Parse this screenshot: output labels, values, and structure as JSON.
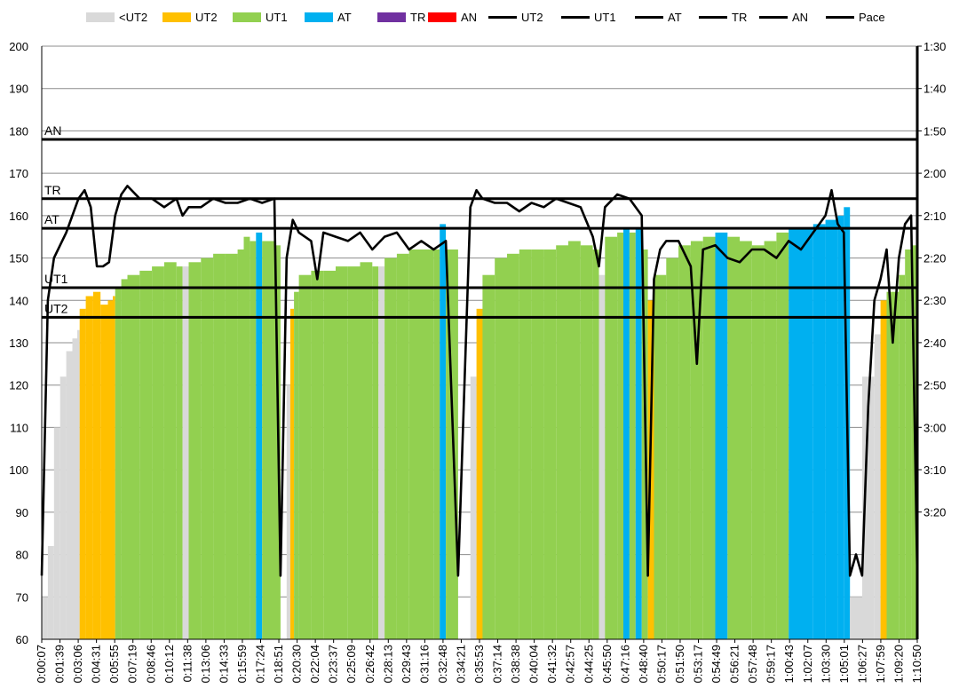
{
  "chart_data": {
    "type": "bar",
    "legend_position": "top",
    "grid": "horizontal",
    "legend": [
      {
        "label": "<UT2",
        "kind": "bar",
        "color": "#d9d9d9"
      },
      {
        "label": "UT2",
        "kind": "bar",
        "color": "#ffc000"
      },
      {
        "label": "UT1",
        "kind": "bar",
        "color": "#92d050"
      },
      {
        "label": "AT",
        "kind": "bar",
        "color": "#00b0f0"
      },
      {
        "label": "TR",
        "kind": "bar",
        "color": "#7030a0"
      },
      {
        "label": "AN",
        "kind": "bar",
        "color": "#ff0000"
      },
      {
        "label": "UT2",
        "kind": "line",
        "color": "#000000"
      },
      {
        "label": "UT1",
        "kind": "line",
        "color": "#000000"
      },
      {
        "label": "AT",
        "kind": "line",
        "color": "#000000"
      },
      {
        "label": "TR",
        "kind": "line",
        "color": "#000000"
      },
      {
        "label": "AN",
        "kind": "line",
        "color": "#000000"
      },
      {
        "label": "Pace",
        "kind": "line",
        "color": "#000000"
      }
    ],
    "y_left": {
      "min": 60,
      "max": 200,
      "ticks": [
        60,
        70,
        80,
        90,
        100,
        110,
        120,
        130,
        140,
        150,
        160,
        170,
        180,
        190,
        200
      ]
    },
    "y_right": {
      "tick_labels": [
        "1:30",
        "1:40",
        "1:50",
        "2:00",
        "2:10",
        "2:20",
        "2:30",
        "2:40",
        "2:50",
        "3:00",
        "3:10",
        "3:20"
      ],
      "top_value_s": 90,
      "seconds_per_tick": 10
    },
    "x_tick_labels": [
      "0:00:07",
      "0:01:39",
      "0:03:06",
      "0:04:31",
      "0:05:55",
      "0:07:19",
      "0:08:46",
      "0:10:12",
      "0:11:38",
      "0:13:06",
      "0:14:33",
      "0:15:59",
      "0:17:24",
      "0:18:51",
      "0:20:30",
      "0:22:04",
      "0:23:37",
      "0:25:09",
      "0:26:42",
      "0:28:13",
      "0:29:43",
      "0:31:16",
      "0:32:48",
      "0:34:21",
      "0:35:53",
      "0:37:14",
      "0:38:38",
      "0:40:04",
      "0:41:32",
      "0:42:57",
      "0:44:25",
      "0:45:50",
      "0:47:16",
      "0:48:40",
      "0:50:17",
      "0:51:50",
      "0:53:17",
      "0:54:49",
      "0:56:21",
      "0:57:48",
      "0:59:17",
      "1:00:43",
      "1:02:07",
      "1:03:30",
      "1:05:01",
      "1:06:27",
      "1:07:59",
      "1:09:20",
      "1:10:50"
    ],
    "zone_lines": [
      {
        "label": "AN",
        "value": 178
      },
      {
        "label": "TR",
        "value": 164
      },
      {
        "label": "AT",
        "value": 157
      },
      {
        "label": "UT1",
        "value": 143
      },
      {
        "label": "UT2",
        "value": 136
      }
    ],
    "hr_samples": [
      {
        "t": 0,
        "hr": 70,
        "zone": "<UT2"
      },
      {
        "t": 0.5,
        "hr": 82,
        "zone": "<UT2"
      },
      {
        "t": 1,
        "hr": 110,
        "zone": "<UT2"
      },
      {
        "t": 1.5,
        "hr": 122,
        "zone": "<UT2"
      },
      {
        "t": 2,
        "hr": 128,
        "zone": "<UT2"
      },
      {
        "t": 2.5,
        "hr": 131,
        "zone": "<UT2"
      },
      {
        "t": 2.9,
        "hr": 133,
        "zone": "<UT2"
      },
      {
        "t": 3.1,
        "hr": 138,
        "zone": "UT2"
      },
      {
        "t": 3.6,
        "hr": 141,
        "zone": "UT2"
      },
      {
        "t": 4.2,
        "hr": 142,
        "zone": "UT2"
      },
      {
        "t": 4.8,
        "hr": 139,
        "zone": "UT2"
      },
      {
        "t": 5.4,
        "hr": 140,
        "zone": "UT2"
      },
      {
        "t": 5.8,
        "hr": 141,
        "zone": "UT2"
      },
      {
        "t": 6.0,
        "hr": 143,
        "zone": "UT1"
      },
      {
        "t": 6.5,
        "hr": 145,
        "zone": "UT1"
      },
      {
        "t": 7,
        "hr": 146,
        "zone": "UT1"
      },
      {
        "t": 8,
        "hr": 147,
        "zone": "UT1"
      },
      {
        "t": 9,
        "hr": 148,
        "zone": "UT1"
      },
      {
        "t": 10,
        "hr": 149,
        "zone": "UT1"
      },
      {
        "t": 11,
        "hr": 148,
        "zone": "UT1"
      },
      {
        "t": 11.5,
        "hr": 148,
        "zone": "<UT2"
      },
      {
        "t": 12,
        "hr": 149,
        "zone": "UT1"
      },
      {
        "t": 13,
        "hr": 150,
        "zone": "UT1"
      },
      {
        "t": 14,
        "hr": 151,
        "zone": "UT1"
      },
      {
        "t": 15,
        "hr": 151,
        "zone": "UT1"
      },
      {
        "t": 16,
        "hr": 152,
        "zone": "UT1"
      },
      {
        "t": 16.5,
        "hr": 155,
        "zone": "UT1"
      },
      {
        "t": 17,
        "hr": 154,
        "zone": "UT1"
      },
      {
        "t": 17.5,
        "hr": 156,
        "zone": "AT"
      },
      {
        "t": 18,
        "hr": 154,
        "zone": "UT1"
      },
      {
        "t": 19,
        "hr": 153,
        "zone": "UT1"
      },
      {
        "t": 19.5,
        "hr": 60,
        "zone": "<UT2"
      },
      {
        "t": 20,
        "hr": 120,
        "zone": "<UT2"
      },
      {
        "t": 20.3,
        "hr": 138,
        "zone": "UT2"
      },
      {
        "t": 20.6,
        "hr": 142,
        "zone": "UT1"
      },
      {
        "t": 21,
        "hr": 146,
        "zone": "UT1"
      },
      {
        "t": 22,
        "hr": 147,
        "zone": "UT1"
      },
      {
        "t": 23,
        "hr": 147,
        "zone": "UT1"
      },
      {
        "t": 24,
        "hr": 148,
        "zone": "UT1"
      },
      {
        "t": 25,
        "hr": 148,
        "zone": "UT1"
      },
      {
        "t": 26,
        "hr": 149,
        "zone": "UT1"
      },
      {
        "t": 27,
        "hr": 148,
        "zone": "UT1"
      },
      {
        "t": 27.5,
        "hr": 148,
        "zone": "<UT2"
      },
      {
        "t": 28,
        "hr": 150,
        "zone": "UT1"
      },
      {
        "t": 29,
        "hr": 151,
        "zone": "UT1"
      },
      {
        "t": 30,
        "hr": 152,
        "zone": "UT1"
      },
      {
        "t": 31,
        "hr": 152,
        "zone": "UT1"
      },
      {
        "t": 32,
        "hr": 152,
        "zone": "UT1"
      },
      {
        "t": 32.5,
        "hr": 158,
        "zone": "AT"
      },
      {
        "t": 33,
        "hr": 152,
        "zone": "UT1"
      },
      {
        "t": 34,
        "hr": 60,
        "zone": "<UT2"
      },
      {
        "t": 35,
        "hr": 122,
        "zone": "<UT2"
      },
      {
        "t": 35.5,
        "hr": 138,
        "zone": "UT2"
      },
      {
        "t": 36,
        "hr": 146,
        "zone": "UT1"
      },
      {
        "t": 37,
        "hr": 150,
        "zone": "UT1"
      },
      {
        "t": 38,
        "hr": 151,
        "zone": "UT1"
      },
      {
        "t": 39,
        "hr": 152,
        "zone": "UT1"
      },
      {
        "t": 40,
        "hr": 152,
        "zone": "UT1"
      },
      {
        "t": 41,
        "hr": 152,
        "zone": "UT1"
      },
      {
        "t": 42,
        "hr": 153,
        "zone": "UT1"
      },
      {
        "t": 43,
        "hr": 154,
        "zone": "UT1"
      },
      {
        "t": 44,
        "hr": 153,
        "zone": "UT1"
      },
      {
        "t": 45,
        "hr": 152,
        "zone": "UT1"
      },
      {
        "t": 45.5,
        "hr": 146,
        "zone": "<UT2"
      },
      {
        "t": 46,
        "hr": 155,
        "zone": "UT1"
      },
      {
        "t": 47,
        "hr": 156,
        "zone": "UT1"
      },
      {
        "t": 47.5,
        "hr": 157,
        "zone": "AT"
      },
      {
        "t": 48,
        "hr": 156,
        "zone": "UT1"
      },
      {
        "t": 48.5,
        "hr": 157,
        "zone": "AT"
      },
      {
        "t": 49,
        "hr": 152,
        "zone": "UT1"
      },
      {
        "t": 49.5,
        "hr": 140,
        "zone": "UT2"
      },
      {
        "t": 50,
        "hr": 146,
        "zone": "UT1"
      },
      {
        "t": 51,
        "hr": 150,
        "zone": "UT1"
      },
      {
        "t": 52,
        "hr": 153,
        "zone": "UT1"
      },
      {
        "t": 53,
        "hr": 154,
        "zone": "UT1"
      },
      {
        "t": 54,
        "hr": 155,
        "zone": "UT1"
      },
      {
        "t": 55,
        "hr": 156,
        "zone": "AT"
      },
      {
        "t": 56,
        "hr": 155,
        "zone": "UT1"
      },
      {
        "t": 57,
        "hr": 154,
        "zone": "UT1"
      },
      {
        "t": 58,
        "hr": 153,
        "zone": "UT1"
      },
      {
        "t": 59,
        "hr": 154,
        "zone": "UT1"
      },
      {
        "t": 60,
        "hr": 156,
        "zone": "UT1"
      },
      {
        "t": 61,
        "hr": 157,
        "zone": "AT"
      },
      {
        "t": 62,
        "hr": 157,
        "zone": "AT"
      },
      {
        "t": 63,
        "hr": 158,
        "zone": "AT"
      },
      {
        "t": 64,
        "hr": 159,
        "zone": "AT"
      },
      {
        "t": 65,
        "hr": 160,
        "zone": "AT"
      },
      {
        "t": 65.5,
        "hr": 162,
        "zone": "AT"
      },
      {
        "t": 66,
        "hr": 70,
        "zone": "<UT2"
      },
      {
        "t": 67,
        "hr": 122,
        "zone": "<UT2"
      },
      {
        "t": 68,
        "hr": 132,
        "zone": "<UT2"
      },
      {
        "t": 68.5,
        "hr": 140,
        "zone": "UT2"
      },
      {
        "t": 69,
        "hr": 142,
        "zone": "UT1"
      },
      {
        "t": 70,
        "hr": 146,
        "zone": "UT1"
      },
      {
        "t": 70.5,
        "hr": 152,
        "zone": "UT1"
      },
      {
        "t": 71,
        "hr": 153,
        "zone": "UT1"
      }
    ],
    "pace_samples": [
      {
        "t": 0,
        "pace_s": 215
      },
      {
        "t": 0.5,
        "pace_s": 150
      },
      {
        "t": 1,
        "pace_s": 140
      },
      {
        "t": 1.5,
        "pace_s": 137
      },
      {
        "t": 2,
        "pace_s": 134
      },
      {
        "t": 2.5,
        "pace_s": 130
      },
      {
        "t": 3,
        "pace_s": 126
      },
      {
        "t": 3.5,
        "pace_s": 124
      },
      {
        "t": 4,
        "pace_s": 128
      },
      {
        "t": 4.5,
        "pace_s": 142
      },
      {
        "t": 5,
        "pace_s": 142
      },
      {
        "t": 5.5,
        "pace_s": 141
      },
      {
        "t": 6,
        "pace_s": 130
      },
      {
        "t": 6.5,
        "pace_s": 125
      },
      {
        "t": 7,
        "pace_s": 123
      },
      {
        "t": 8,
        "pace_s": 126
      },
      {
        "t": 9,
        "pace_s": 126
      },
      {
        "t": 10,
        "pace_s": 128
      },
      {
        "t": 11,
        "pace_s": 126
      },
      {
        "t": 11.5,
        "pace_s": 130
      },
      {
        "t": 12,
        "pace_s": 128
      },
      {
        "t": 13,
        "pace_s": 128
      },
      {
        "t": 14,
        "pace_s": 126
      },
      {
        "t": 15,
        "pace_s": 127
      },
      {
        "t": 16,
        "pace_s": 127
      },
      {
        "t": 17,
        "pace_s": 126
      },
      {
        "t": 18,
        "pace_s": 127
      },
      {
        "t": 19,
        "pace_s": 126
      },
      {
        "t": 19.5,
        "pace_s": 215
      },
      {
        "t": 20,
        "pace_s": 140
      },
      {
        "t": 20.5,
        "pace_s": 131
      },
      {
        "t": 21,
        "pace_s": 134
      },
      {
        "t": 22,
        "pace_s": 136
      },
      {
        "t": 22.5,
        "pace_s": 145
      },
      {
        "t": 23,
        "pace_s": 134
      },
      {
        "t": 24,
        "pace_s": 135
      },
      {
        "t": 25,
        "pace_s": 136
      },
      {
        "t": 26,
        "pace_s": 134
      },
      {
        "t": 27,
        "pace_s": 138
      },
      {
        "t": 28,
        "pace_s": 135
      },
      {
        "t": 29,
        "pace_s": 134
      },
      {
        "t": 30,
        "pace_s": 138
      },
      {
        "t": 31,
        "pace_s": 136
      },
      {
        "t": 32,
        "pace_s": 138
      },
      {
        "t": 33,
        "pace_s": 136
      },
      {
        "t": 34,
        "pace_s": 215
      },
      {
        "t": 35,
        "pace_s": 128
      },
      {
        "t": 35.5,
        "pace_s": 124
      },
      {
        "t": 36,
        "pace_s": 126
      },
      {
        "t": 37,
        "pace_s": 127
      },
      {
        "t": 38,
        "pace_s": 127
      },
      {
        "t": 39,
        "pace_s": 129
      },
      {
        "t": 40,
        "pace_s": 127
      },
      {
        "t": 41,
        "pace_s": 128
      },
      {
        "t": 42,
        "pace_s": 126
      },
      {
        "t": 43,
        "pace_s": 127
      },
      {
        "t": 44,
        "pace_s": 128
      },
      {
        "t": 45,
        "pace_s": 135
      },
      {
        "t": 45.5,
        "pace_s": 142
      },
      {
        "t": 46,
        "pace_s": 128
      },
      {
        "t": 47,
        "pace_s": 125
      },
      {
        "t": 48,
        "pace_s": 126
      },
      {
        "t": 49,
        "pace_s": 130
      },
      {
        "t": 49.5,
        "pace_s": 215
      },
      {
        "t": 50,
        "pace_s": 145
      },
      {
        "t": 50.5,
        "pace_s": 138
      },
      {
        "t": 51,
        "pace_s": 136
      },
      {
        "t": 52,
        "pace_s": 136
      },
      {
        "t": 53,
        "pace_s": 142
      },
      {
        "t": 53.5,
        "pace_s": 165
      },
      {
        "t": 54,
        "pace_s": 138
      },
      {
        "t": 55,
        "pace_s": 137
      },
      {
        "t": 56,
        "pace_s": 140
      },
      {
        "t": 57,
        "pace_s": 141
      },
      {
        "t": 58,
        "pace_s": 138
      },
      {
        "t": 59,
        "pace_s": 138
      },
      {
        "t": 60,
        "pace_s": 140
      },
      {
        "t": 61,
        "pace_s": 136
      },
      {
        "t": 62,
        "pace_s": 138
      },
      {
        "t": 63,
        "pace_s": 134
      },
      {
        "t": 64,
        "pace_s": 130
      },
      {
        "t": 64.5,
        "pace_s": 124
      },
      {
        "t": 65,
        "pace_s": 132
      },
      {
        "t": 65.5,
        "pace_s": 134
      },
      {
        "t": 66,
        "pace_s": 215
      },
      {
        "t": 66.5,
        "pace_s": 210
      },
      {
        "t": 67,
        "pace_s": 215
      },
      {
        "t": 67.5,
        "pace_s": 175
      },
      {
        "t": 68,
        "pace_s": 150
      },
      {
        "t": 68.5,
        "pace_s": 145
      },
      {
        "t": 69,
        "pace_s": 138
      },
      {
        "t": 69.5,
        "pace_s": 160
      },
      {
        "t": 70,
        "pace_s": 140
      },
      {
        "t": 70.5,
        "pace_s": 132
      },
      {
        "t": 71,
        "pace_s": 130
      },
      {
        "t": 71.5,
        "pace_s": 215
      }
    ]
  }
}
